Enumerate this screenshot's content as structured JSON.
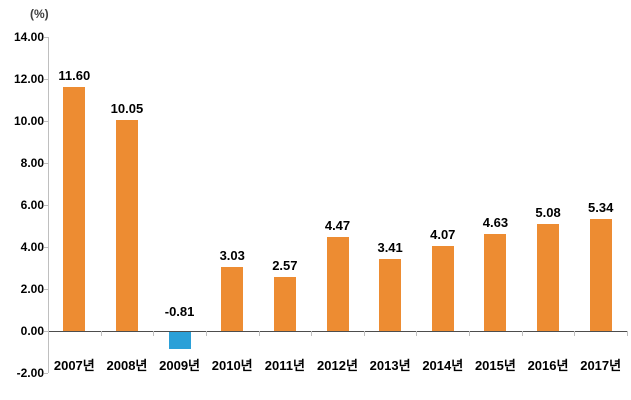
{
  "chart_data": {
    "type": "bar",
    "title": "",
    "unit_label": "(%)",
    "categories": [
      "2007년",
      "2008년",
      "2009년",
      "2010년",
      "2011년",
      "2012년",
      "2013년",
      "2014년",
      "2015년",
      "2016년",
      "2017년"
    ],
    "values": [
      11.6,
      10.05,
      -0.81,
      3.03,
      2.57,
      4.47,
      3.41,
      4.07,
      4.63,
      5.08,
      5.34
    ],
    "value_labels": [
      "11.60",
      "10.05",
      "-0.81",
      "3.03",
      "2.57",
      "4.47",
      "3.41",
      "4.07",
      "4.63",
      "5.08",
      "5.34"
    ],
    "xlabel": "",
    "ylabel": "(%)",
    "ylim": [
      -2.0,
      14.0
    ],
    "ytick_step": 2.0,
    "ytick_labels": [
      "14.00",
      "12.00",
      "10.00",
      "8.00",
      "6.00",
      "4.00",
      "2.00",
      "0.00",
      "-2.00"
    ],
    "grid": false,
    "legend_position": "none",
    "colors": {
      "positive_bar": "#ED8C32",
      "negative_bar": "#2BA0D8",
      "axis_line": "#BFBFBF",
      "zero_line": "#4D4D4D",
      "label_text": "#000000"
    }
  }
}
